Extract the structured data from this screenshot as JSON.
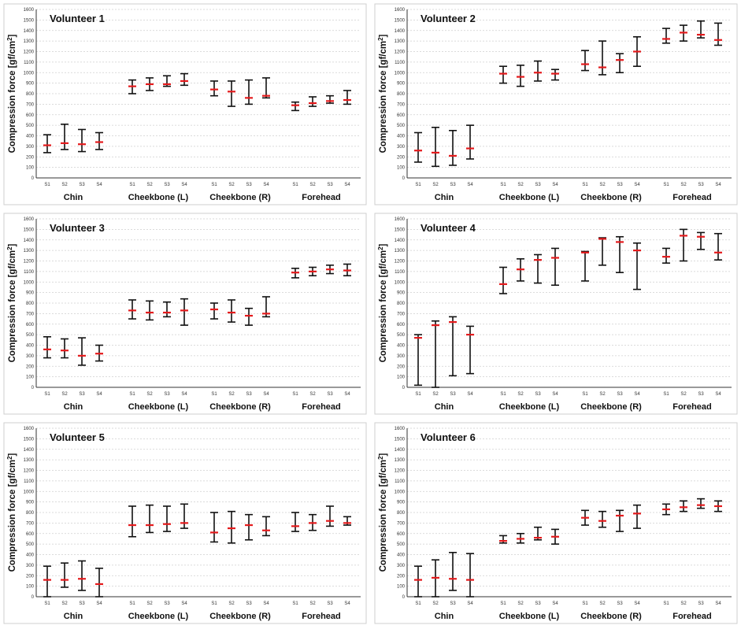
{
  "chart_data": [
    {
      "type": "errorbar",
      "title": "Volunteer 1",
      "ylabel": "Compression force [gf/cm2]",
      "ylim": [
        0,
        1600
      ],
      "yticks": [
        0,
        100,
        200,
        300,
        400,
        500,
        600,
        700,
        800,
        900,
        1000,
        1100,
        1200,
        1300,
        1400,
        1500,
        1600
      ],
      "sessions": [
        "S1",
        "S2",
        "S3",
        "S4"
      ],
      "categories": [
        "Chin",
        "Cheekbone (L)",
        "Cheekbone (R)",
        "Forehead"
      ],
      "groups": [
        {
          "mean": [
            310,
            330,
            320,
            340
          ],
          "min": [
            240,
            270,
            250,
            270
          ],
          "max": [
            410,
            510,
            460,
            430
          ]
        },
        {
          "mean": [
            870,
            890,
            890,
            920
          ],
          "min": [
            800,
            830,
            870,
            880
          ],
          "max": [
            930,
            950,
            970,
            990
          ]
        },
        {
          "mean": [
            840,
            820,
            760,
            780
          ],
          "min": [
            780,
            680,
            700,
            760
          ],
          "max": [
            920,
            920,
            930,
            950
          ]
        },
        {
          "mean": [
            690,
            710,
            730,
            740
          ],
          "min": [
            640,
            680,
            710,
            700
          ],
          "max": [
            720,
            770,
            780,
            830
          ]
        }
      ]
    },
    {
      "type": "errorbar",
      "title": "Volunteer 2",
      "ylabel": "Compression force [gf/cm2]",
      "ylim": [
        0,
        1600
      ],
      "yticks": [
        0,
        100,
        200,
        300,
        400,
        500,
        600,
        700,
        800,
        900,
        1000,
        1100,
        1200,
        1300,
        1400,
        1500,
        1600
      ],
      "sessions": [
        "S1",
        "S2",
        "S3",
        "S4"
      ],
      "categories": [
        "Chin",
        "Cheekbone (L)",
        "Cheekbone (R)",
        "Forehead"
      ],
      "groups": [
        {
          "mean": [
            260,
            240,
            210,
            280
          ],
          "min": [
            150,
            110,
            120,
            180
          ],
          "max": [
            430,
            480,
            450,
            500
          ]
        },
        {
          "mean": [
            990,
            960,
            1000,
            990
          ],
          "min": [
            900,
            870,
            920,
            930
          ],
          "max": [
            1060,
            1070,
            1110,
            1030
          ]
        },
        {
          "mean": [
            1080,
            1050,
            1120,
            1200
          ],
          "min": [
            1020,
            980,
            1000,
            1060
          ],
          "max": [
            1210,
            1300,
            1180,
            1340
          ]
        },
        {
          "mean": [
            1320,
            1380,
            1360,
            1310
          ],
          "min": [
            1280,
            1300,
            1330,
            1260
          ],
          "max": [
            1420,
            1450,
            1490,
            1470
          ]
        }
      ]
    },
    {
      "type": "errorbar",
      "title": "Volunteer 3",
      "ylabel": "Compression force [gf/cm2]",
      "ylim": [
        0,
        1600
      ],
      "yticks": [
        0,
        100,
        200,
        300,
        400,
        500,
        600,
        700,
        800,
        900,
        1000,
        1100,
        1200,
        1300,
        1400,
        1500,
        1600
      ],
      "sessions": [
        "S1",
        "S2",
        "S3",
        "S4"
      ],
      "categories": [
        "Chin",
        "Cheekbone (L)",
        "Cheekbone (R)",
        "Forehead"
      ],
      "groups": [
        {
          "mean": [
            360,
            350,
            300,
            320
          ],
          "min": [
            280,
            280,
            210,
            250
          ],
          "max": [
            480,
            460,
            470,
            400
          ]
        },
        {
          "mean": [
            730,
            710,
            710,
            730
          ],
          "min": [
            650,
            640,
            670,
            590
          ],
          "max": [
            830,
            820,
            810,
            840
          ]
        },
        {
          "mean": [
            740,
            710,
            680,
            700
          ],
          "min": [
            650,
            620,
            590,
            670
          ],
          "max": [
            800,
            830,
            750,
            860
          ]
        },
        {
          "mean": [
            1090,
            1100,
            1120,
            1110
          ],
          "min": [
            1040,
            1060,
            1080,
            1060
          ],
          "max": [
            1130,
            1140,
            1160,
            1170
          ]
        }
      ]
    },
    {
      "type": "errorbar",
      "title": "Volunteer 4",
      "ylabel": "Compression force [gf/cm2]",
      "ylim": [
        0,
        1600
      ],
      "yticks": [
        0,
        100,
        200,
        300,
        400,
        500,
        600,
        700,
        800,
        900,
        1000,
        1100,
        1200,
        1300,
        1400,
        1500,
        1600
      ],
      "sessions": [
        "S1",
        "S2",
        "S3",
        "S4"
      ],
      "categories": [
        "Chin",
        "Cheekbone (L)",
        "Cheekbone (R)",
        "Forehead"
      ],
      "groups": [
        {
          "mean": [
            470,
            590,
            620,
            500
          ],
          "min": [
            20,
            0,
            110,
            130
          ],
          "max": [
            500,
            630,
            670,
            580
          ]
        },
        {
          "mean": [
            980,
            1120,
            1210,
            1230
          ],
          "min": [
            890,
            1010,
            990,
            970
          ],
          "max": [
            1140,
            1220,
            1260,
            1320
          ]
        },
        {
          "mean": [
            1280,
            1410,
            1380,
            1300
          ],
          "min": [
            1010,
            1160,
            1090,
            930
          ],
          "max": [
            1290,
            1420,
            1430,
            1370
          ]
        },
        {
          "mean": [
            1240,
            1440,
            1430,
            1280
          ],
          "min": [
            1180,
            1200,
            1310,
            1210
          ],
          "max": [
            1320,
            1500,
            1470,
            1460
          ]
        }
      ]
    },
    {
      "type": "errorbar",
      "title": "Volunteer 5",
      "ylabel": "Compression force [gf/cm2]",
      "ylim": [
        0,
        1600
      ],
      "yticks": [
        0,
        100,
        200,
        300,
        400,
        500,
        600,
        700,
        800,
        900,
        1000,
        1100,
        1200,
        1300,
        1400,
        1500,
        1600
      ],
      "sessions": [
        "S1",
        "S2",
        "S3",
        "S4"
      ],
      "categories": [
        "Chin",
        "Cheekbone (L)",
        "Cheekbone (R)",
        "Forehead"
      ],
      "groups": [
        {
          "mean": [
            160,
            160,
            170,
            120
          ],
          "min": [
            0,
            90,
            60,
            0
          ],
          "max": [
            290,
            320,
            340,
            270
          ]
        },
        {
          "mean": [
            680,
            680,
            690,
            700
          ],
          "min": [
            570,
            610,
            620,
            650
          ],
          "max": [
            860,
            870,
            860,
            880
          ]
        },
        {
          "mean": [
            610,
            650,
            680,
            630
          ],
          "min": [
            520,
            510,
            540,
            580
          ],
          "max": [
            800,
            810,
            780,
            760
          ]
        },
        {
          "mean": [
            670,
            700,
            720,
            700
          ],
          "min": [
            620,
            630,
            670,
            680
          ],
          "max": [
            800,
            780,
            860,
            760
          ]
        }
      ]
    },
    {
      "type": "errorbar",
      "title": "Volunteer 6",
      "ylabel": "Compression force [gf/cm2]",
      "ylim": [
        0,
        1600
      ],
      "yticks": [
        0,
        100,
        200,
        300,
        400,
        500,
        600,
        700,
        800,
        900,
        1000,
        1100,
        1200,
        1300,
        1400,
        1500,
        1600
      ],
      "sessions": [
        "S1",
        "S2",
        "S3",
        "S4"
      ],
      "categories": [
        "Chin",
        "Cheekbone (L)",
        "Cheekbone (R)",
        "Forehead"
      ],
      "groups": [
        {
          "mean": [
            160,
            180,
            170,
            160
          ],
          "min": [
            0,
            0,
            60,
            0
          ],
          "max": [
            290,
            350,
            420,
            410
          ]
        },
        {
          "mean": [
            530,
            550,
            560,
            570
          ],
          "min": [
            510,
            510,
            540,
            500
          ],
          "max": [
            580,
            600,
            660,
            640
          ]
        },
        {
          "mean": [
            750,
            720,
            770,
            790
          ],
          "min": [
            680,
            660,
            620,
            650
          ],
          "max": [
            820,
            810,
            820,
            870
          ]
        },
        {
          "mean": [
            830,
            850,
            870,
            860
          ],
          "min": [
            780,
            810,
            840,
            810
          ],
          "max": [
            880,
            910,
            930,
            910
          ]
        }
      ]
    }
  ]
}
